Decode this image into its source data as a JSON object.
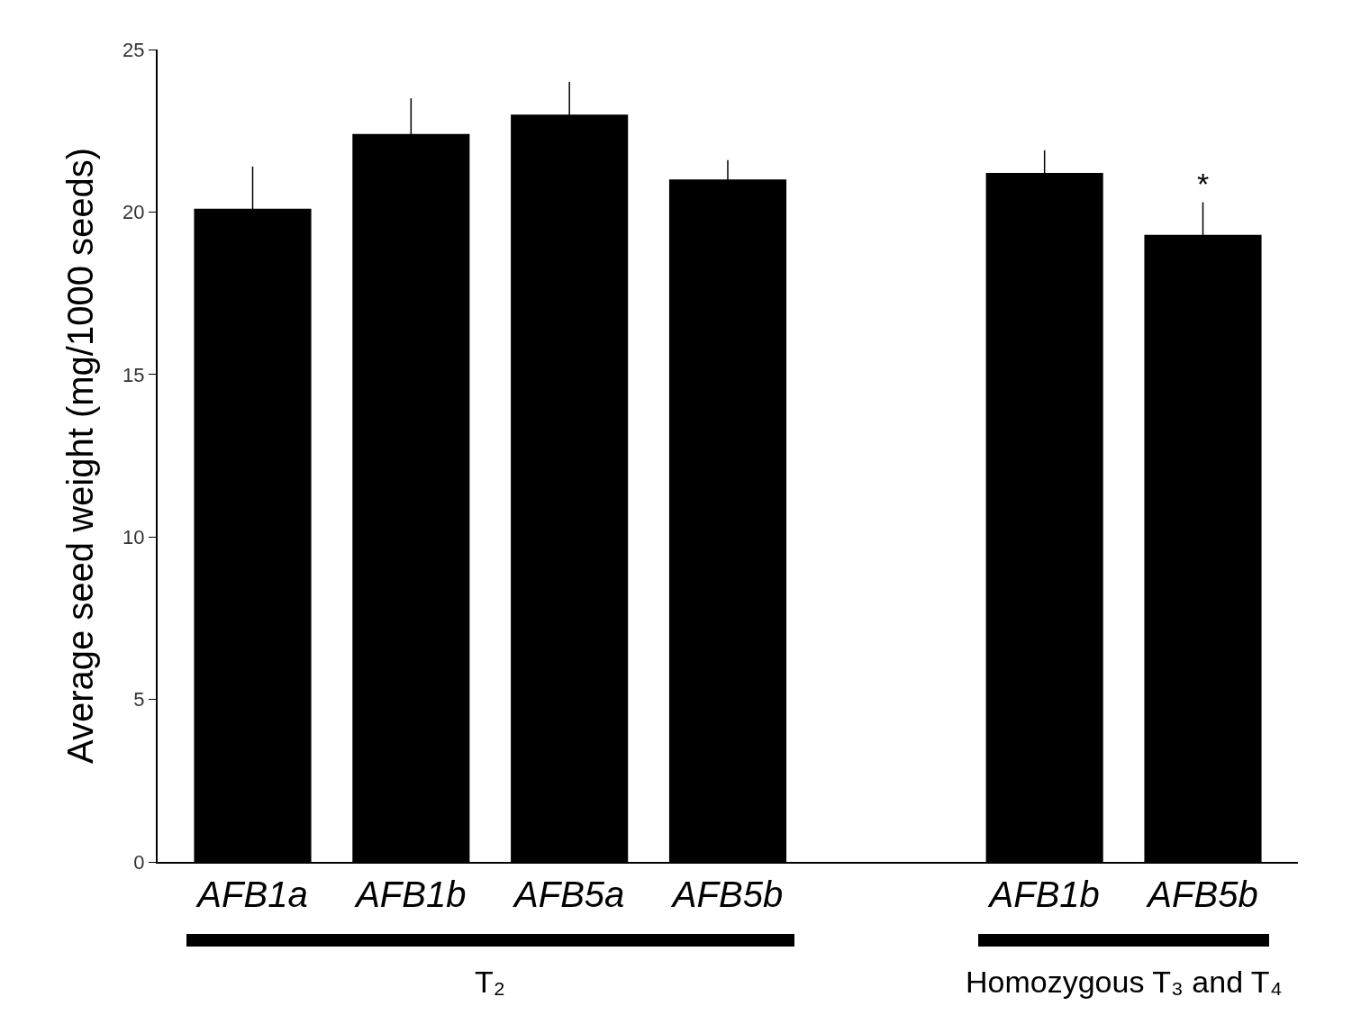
{
  "chart_data": {
    "type": "bar",
    "ylabel": "Average seed weight (mg/1000 seeds)",
    "categories": [
      "AFB1a",
      "AFB1b",
      "AFB5a",
      "AFB5b",
      null,
      "AFB1b",
      "AFB5b"
    ],
    "values": [
      20.1,
      22.4,
      23.0,
      21.0,
      null,
      21.2,
      19.3
    ],
    "errors": [
      1.3,
      1.1,
      1.0,
      0.6,
      null,
      0.7,
      1.0
    ],
    "color": "#000000",
    "ylim": [
      0,
      25
    ],
    "yticks": [
      0,
      5,
      10,
      15,
      20,
      25
    ],
    "annotations": [
      "T₂",
      "Homozygous T₃ and T₄",
      "*"
    ]
  }
}
